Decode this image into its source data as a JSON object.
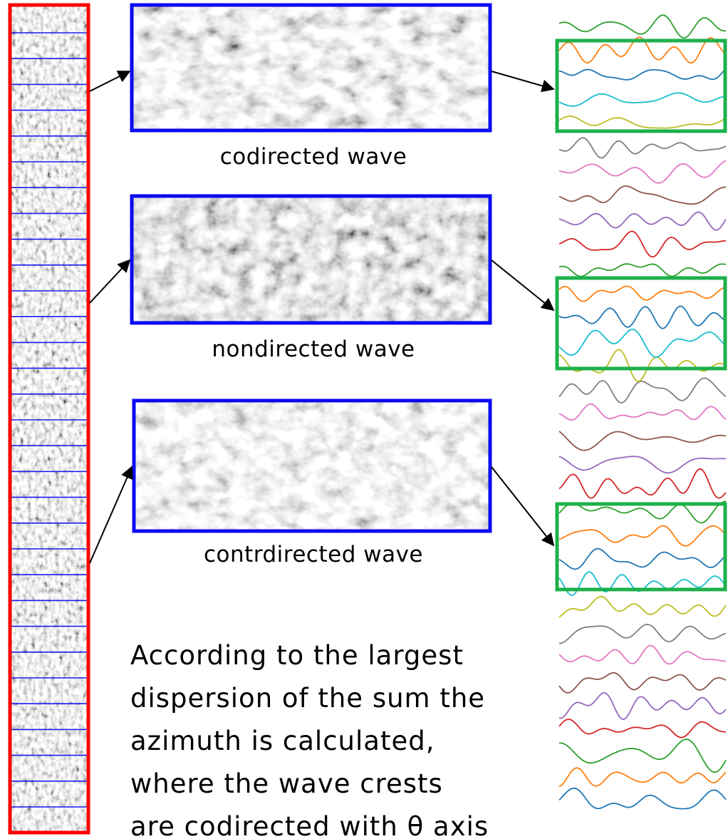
{
  "panels": [
    {
      "caption": "codirected wave"
    },
    {
      "caption": "nondirected wave"
    },
    {
      "caption": "contrdirected wave"
    }
  ],
  "paragraph": {
    "lines": [
      "According to the largest",
      "dispersion of the sum the",
      "azimuth is calculated,",
      "where the wave crests",
      "are codirected with θ axis"
    ]
  }
}
